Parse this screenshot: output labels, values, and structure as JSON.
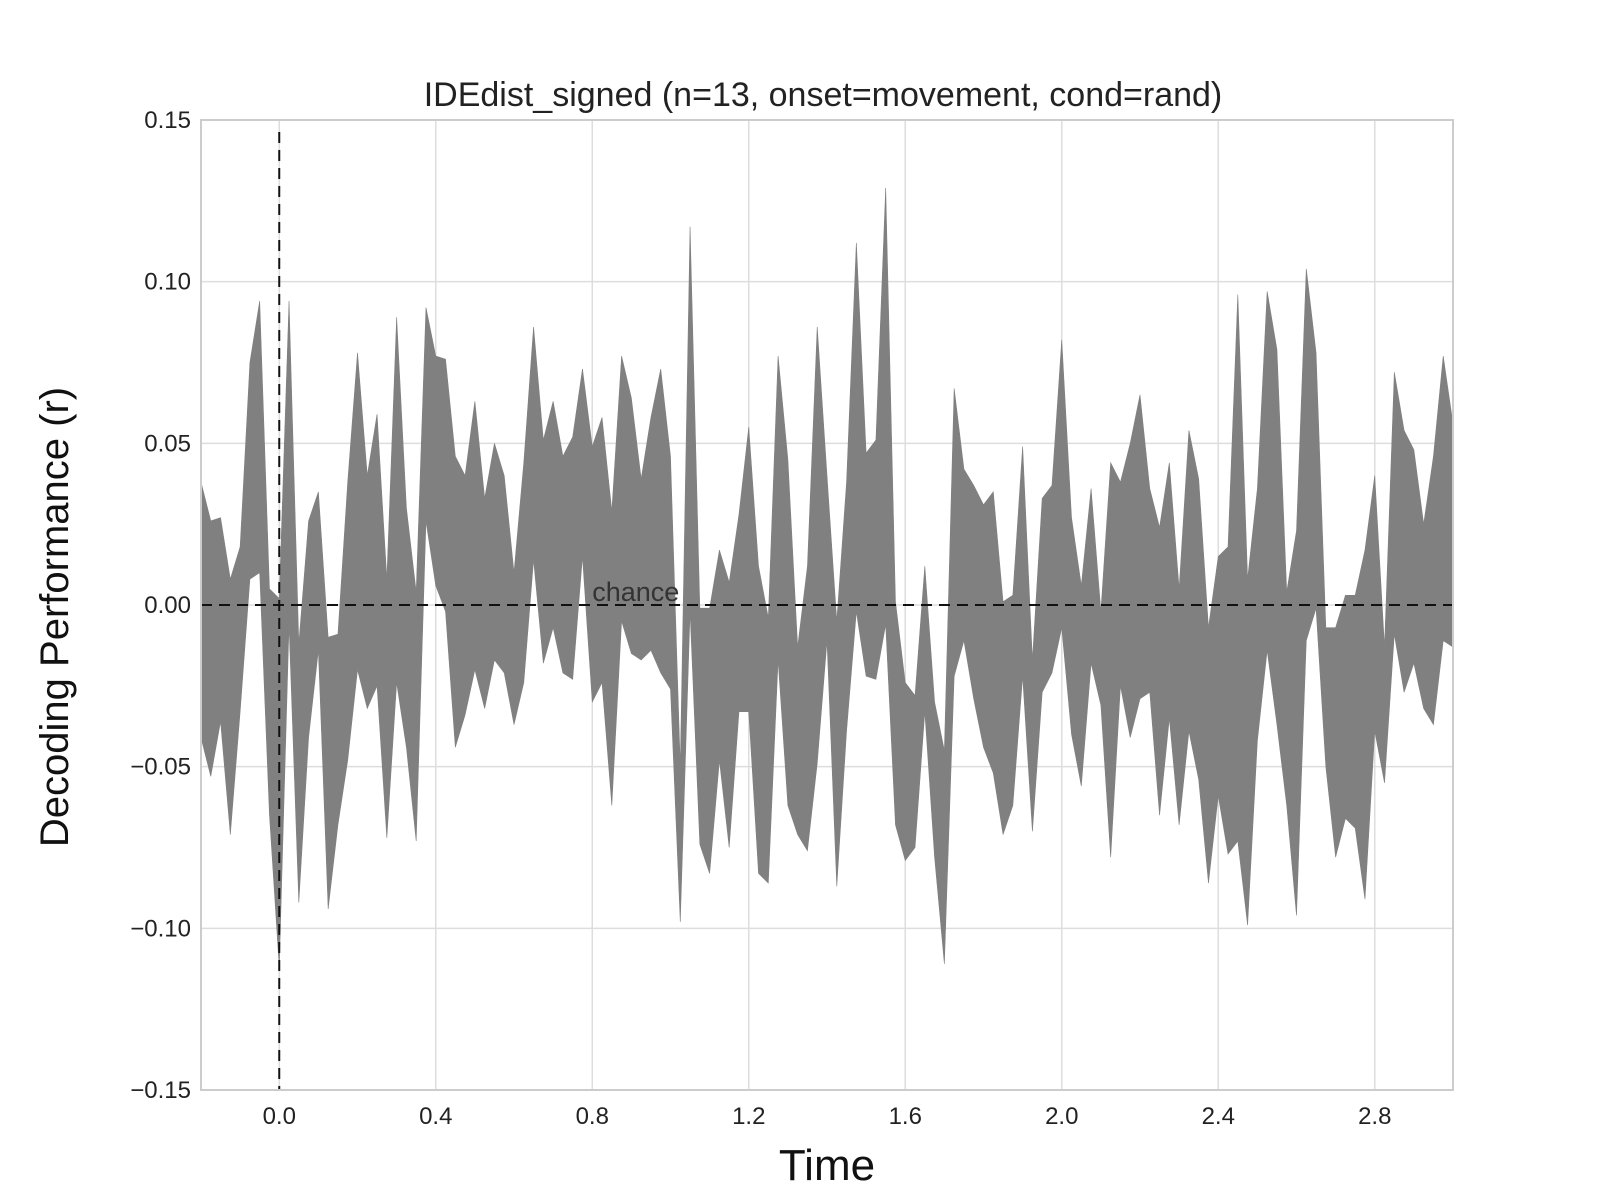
{
  "chart_data": {
    "type": "area",
    "title": "IDEdist_signed (n=13, onset=movement, cond=rand)",
    "xlabel": "Time",
    "ylabel": "Decoding Performance (r)",
    "xlim": [
      -0.2,
      3.0
    ],
    "ylim": [
      -0.15,
      0.15
    ],
    "xticks": [
      0.0,
      0.4,
      0.8,
      1.2,
      1.6,
      2.0,
      2.4,
      2.8
    ],
    "xtick_labels": [
      "0.0",
      "0.4",
      "0.8",
      "1.2",
      "1.6",
      "2.0",
      "2.4",
      "2.8"
    ],
    "yticks": [
      -0.15,
      -0.1,
      -0.05,
      0.0,
      0.05,
      0.1,
      0.15
    ],
    "ytick_labels": [
      "−0.15",
      "−0.10",
      "−0.05",
      "0.00",
      "0.05",
      "0.10",
      "0.15"
    ],
    "grid": true,
    "fill_color": "#808080",
    "chance": {
      "y": 0.0,
      "label": "chance"
    },
    "onset_line": {
      "x": 0.0
    },
    "series": [
      {
        "kind": "band",
        "x": [
          -0.2,
          -0.175,
          -0.15,
          -0.125,
          -0.1,
          -0.075,
          -0.05,
          -0.025,
          0.0,
          0.025,
          0.05,
          0.075,
          0.1,
          0.125,
          0.15,
          0.175,
          0.2,
          0.225,
          0.25,
          0.275,
          0.3,
          0.325,
          0.35,
          0.375,
          0.4,
          0.425,
          0.45,
          0.475,
          0.5,
          0.525,
          0.55,
          0.575,
          0.6,
          0.625,
          0.65,
          0.675,
          0.7,
          0.725,
          0.75,
          0.775,
          0.8,
          0.825,
          0.85,
          0.875,
          0.9,
          0.925,
          0.95,
          0.975,
          1.0,
          1.025,
          1.05,
          1.075,
          1.1,
          1.125,
          1.15,
          1.175,
          1.2,
          1.225,
          1.25,
          1.275,
          1.3,
          1.325,
          1.35,
          1.375,
          1.4,
          1.425,
          1.45,
          1.475,
          1.5,
          1.525,
          1.55,
          1.575,
          1.6,
          1.625,
          1.65,
          1.675,
          1.7,
          1.725,
          1.75,
          1.775,
          1.8,
          1.825,
          1.85,
          1.875,
          1.9,
          1.925,
          1.95,
          1.975,
          2.0,
          2.025,
          2.05,
          2.075,
          2.1,
          2.125,
          2.15,
          2.175,
          2.2,
          2.225,
          2.25,
          2.275,
          2.3,
          2.325,
          2.35,
          2.375,
          2.4,
          2.425,
          2.45,
          2.475,
          2.5,
          2.525,
          2.55,
          2.575,
          2.6,
          2.625,
          2.65,
          2.675,
          2.7,
          2.725,
          2.75,
          2.775,
          2.8,
          2.825,
          2.85,
          2.875,
          2.9,
          2.925,
          2.95,
          2.975,
          3.0
        ],
        "upper": [
          0.038,
          0.026,
          0.027,
          0.008,
          0.018,
          0.075,
          0.094,
          0.005,
          0.002,
          0.094,
          -0.012,
          0.026,
          0.035,
          -0.01,
          -0.009,
          0.038,
          0.078,
          0.04,
          0.059,
          0.008,
          0.089,
          0.03,
          0.004,
          0.092,
          0.077,
          0.076,
          0.046,
          0.04,
          0.063,
          0.033,
          0.05,
          0.04,
          0.01,
          0.044,
          0.086,
          0.051,
          0.063,
          0.046,
          0.052,
          0.073,
          0.049,
          0.058,
          0.029,
          0.077,
          0.064,
          0.039,
          0.058,
          0.073,
          0.046,
          -0.05,
          0.117,
          -0.001,
          -0.001,
          0.017,
          0.007,
          0.028,
          0.055,
          0.012,
          -0.004,
          0.077,
          0.045,
          -0.013,
          0.012,
          0.086,
          0.04,
          -0.005,
          0.038,
          0.112,
          0.047,
          0.051,
          0.129,
          0.001,
          -0.024,
          -0.028,
          0.012,
          -0.03,
          -0.045,
          0.067,
          0.042,
          0.037,
          0.031,
          0.035,
          0.001,
          0.003,
          0.049,
          -0.017,
          0.033,
          0.037,
          0.082,
          0.027,
          0.006,
          0.036,
          -0.002,
          0.044,
          0.038,
          0.05,
          0.065,
          0.036,
          0.024,
          0.044,
          0.005,
          0.054,
          0.039,
          -0.007,
          0.015,
          0.018,
          0.096,
          0.008,
          0.036,
          0.097,
          0.079,
          0.004,
          0.023,
          0.104,
          0.078,
          -0.007,
          -0.007,
          0.003,
          0.003,
          0.017,
          0.04,
          -0.013,
          0.072,
          0.054,
          0.048,
          0.025,
          0.046,
          0.077,
          0.056
        ],
        "lower": [
          -0.041,
          -0.053,
          -0.036,
          -0.071,
          -0.033,
          0.008,
          0.01,
          -0.065,
          -0.112,
          -0.006,
          -0.092,
          -0.041,
          -0.014,
          -0.094,
          -0.068,
          -0.048,
          -0.02,
          -0.032,
          -0.025,
          -0.072,
          -0.024,
          -0.044,
          -0.073,
          0.026,
          0.006,
          -0.002,
          -0.044,
          -0.034,
          -0.02,
          -0.032,
          -0.017,
          -0.021,
          -0.037,
          -0.024,
          0.014,
          -0.018,
          -0.007,
          -0.021,
          -0.023,
          0.015,
          -0.03,
          -0.024,
          -0.062,
          -0.005,
          -0.015,
          -0.017,
          -0.014,
          -0.021,
          -0.026,
          -0.098,
          -0.002,
          -0.074,
          -0.083,
          -0.048,
          -0.075,
          -0.033,
          -0.033,
          -0.083,
          -0.086,
          -0.017,
          -0.062,
          -0.071,
          -0.076,
          -0.049,
          -0.011,
          -0.087,
          -0.039,
          -0.002,
          -0.022,
          -0.023,
          -0.006,
          -0.068,
          -0.079,
          -0.075,
          -0.033,
          -0.078,
          -0.111,
          -0.022,
          -0.011,
          -0.029,
          -0.044,
          -0.052,
          -0.071,
          -0.062,
          -0.022,
          -0.07,
          -0.027,
          -0.021,
          -0.007,
          -0.04,
          -0.056,
          -0.018,
          -0.031,
          -0.078,
          -0.025,
          -0.041,
          -0.029,
          -0.027,
          -0.065,
          -0.035,
          -0.068,
          -0.039,
          -0.054,
          -0.086,
          -0.059,
          -0.077,
          -0.073,
          -0.099,
          -0.042,
          -0.014,
          -0.037,
          -0.062,
          -0.096,
          -0.011,
          -0.001,
          -0.05,
          -0.078,
          -0.066,
          -0.069,
          -0.091,
          -0.039,
          -0.055,
          -0.009,
          -0.027,
          -0.018,
          -0.032,
          -0.037,
          -0.011,
          -0.013
        ]
      }
    ]
  }
}
